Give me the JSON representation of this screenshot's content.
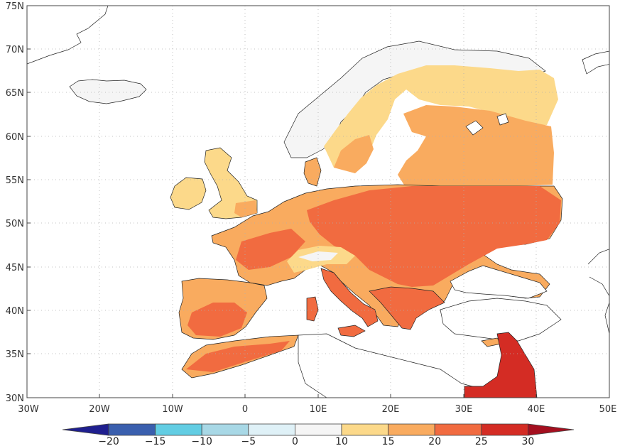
{
  "map": {
    "lat_ticks": [
      "75N",
      "70N",
      "65N",
      "60N",
      "55N",
      "50N",
      "45N",
      "40N",
      "35N",
      "30N"
    ],
    "lon_ticks": [
      "30W",
      "20W",
      "10W",
      "0",
      "10E",
      "20E",
      "30E",
      "40E",
      "50E"
    ],
    "lat_range": [
      30,
      75
    ],
    "lon_range": [
      -30,
      50
    ],
    "gridlines": "dotted",
    "colors": {
      "below_min": "#1f1f8f",
      "bins": [
        "#3a5fae",
        "#4a7fc0",
        "#62cde3",
        "#a8d8e6",
        "#dff1f7",
        "#f5f5f5",
        "#fcd98a",
        "#f9ab5f",
        "#f16b40",
        "#d42c24"
      ],
      "above_max": "#a40f1f",
      "coast": "#222222",
      "background": "#ffffff"
    }
  },
  "colorbar": {
    "labels": [
      "−20",
      "−15",
      "−10",
      "−5",
      "0",
      "10",
      "15",
      "20",
      "25",
      "30"
    ]
  }
}
